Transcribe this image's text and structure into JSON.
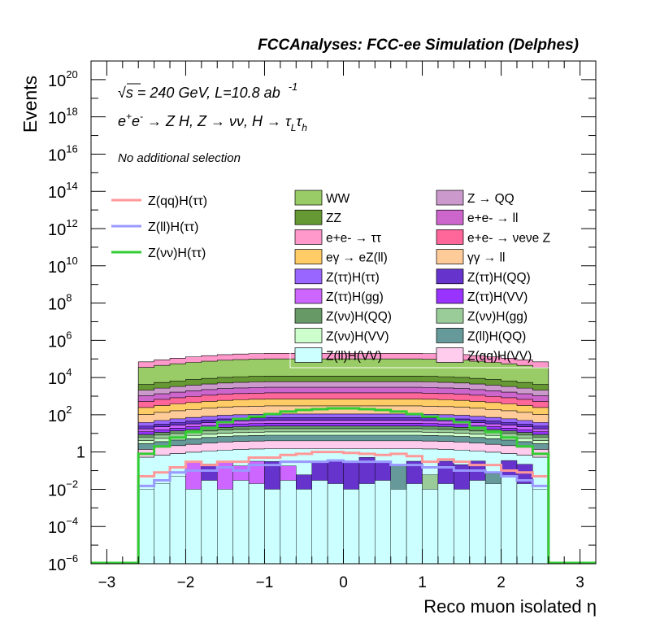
{
  "header": {
    "title": "FCCAnalyses: FCC-ee Simulation (Delphes)"
  },
  "annotations": {
    "energy_prefix": "√s",
    "energy_rest": " = 240 GeV, L=10.8 ab",
    "lumi_exp": "-1",
    "process": {
      "p1": "e",
      "p1_sup": "+",
      "p2": "e",
      "p2_sup": "-",
      "p3": " → Z H, Z  → νν, H  → τ",
      "sub1": "L",
      "p4": "τ",
      "sub2": "h"
    },
    "selection": "No additional selection"
  },
  "chart_data": {
    "type": "histogram",
    "title": "FCCAnalyses: FCC-ee Simulation (Delphes)",
    "xlabel": "Reco muon isolated η",
    "ylabel": "Events",
    "xlim": [
      -3.2,
      3.2
    ],
    "ylim": [
      1e-06,
      1e+21
    ],
    "yscale": "log",
    "x_ticks": [
      "−3",
      "−2",
      "−1",
      "0",
      "1",
      "2",
      "3"
    ],
    "x_tick_values": [
      -3,
      -2,
      -1,
      0,
      1,
      2,
      3
    ],
    "y_ticks": [
      {
        "value": 1e-06,
        "base": "10",
        "exp": "−6"
      },
      {
        "value": 0.0001,
        "base": "10",
        "exp": "−4"
      },
      {
        "value": 0.01,
        "base": "10",
        "exp": "−2"
      },
      {
        "value": 1,
        "base": "1",
        "exp": ""
      },
      {
        "value": 100.0,
        "base": "10",
        "exp": "2"
      },
      {
        "value": 10000.0,
        "base": "10",
        "exp": "4"
      },
      {
        "value": 1000000.0,
        "base": "10",
        "exp": "6"
      },
      {
        "value": 100000000.0,
        "base": "10",
        "exp": "8"
      },
      {
        "value": 10000000000.0,
        "base": "10",
        "exp": "10"
      },
      {
        "value": 1000000000000.0,
        "base": "10",
        "exp": "12"
      },
      {
        "value": 100000000000000.0,
        "base": "10",
        "exp": "14"
      },
      {
        "value": 1e+16,
        "base": "10",
        "exp": "16"
      },
      {
        "value": 1e+18,
        "base": "10",
        "exp": "18"
      },
      {
        "value": 1e+20,
        "base": "10",
        "exp": "20"
      }
    ],
    "bin_range": [
      -2.6,
      2.6
    ],
    "n_bins": 26,
    "stack_layers": [
      {
        "name": "Z(ll)H(VV)",
        "color": "#ccffff",
        "top": 1.5
      },
      {
        "name": "Z(qq)H(VV)",
        "color": "#ffccee",
        "top": 4
      },
      {
        "name": "Z(ll)H(QQ)",
        "color": "#669999",
        "top": 8
      },
      {
        "name": "Z(νν)H(VV)",
        "color": "#ccffcc",
        "top": 12
      },
      {
        "name": "Z(νν)H(gg)",
        "color": "#99cc99",
        "top": 18
      },
      {
        "name": "Z(νν)H(QQ)",
        "color": "#669966",
        "top": 25
      },
      {
        "name": "Z(ττ)H(VV)",
        "color": "#9933ff",
        "top": 35
      },
      {
        "name": "Z(ττ)H(gg)",
        "color": "#cc66ff",
        "top": 50
      },
      {
        "name": "Z(ττ)H(QQ)",
        "color": "#6633cc",
        "top": 70
      },
      {
        "name": "Z(ττ)H(ττ)",
        "color": "#9966ff",
        "top": 110
      },
      {
        "name": "γγ → ll",
        "color": "#ffcc99",
        "top": 300
      },
      {
        "name": "eγ → eZ(ll)",
        "color": "#ffcc66",
        "top": 700
      },
      {
        "name": "e+e- → νeνe Z",
        "color": "#ff6699",
        "top": 1500
      },
      {
        "name": "e+e- → ll",
        "color": "#cc66cc",
        "top": 3000
      },
      {
        "name": "Z → QQ",
        "color": "#cc99cc",
        "top": 6000
      },
      {
        "name": "ZZ",
        "color": "#669933",
        "top": 12000
      },
      {
        "name": "WW",
        "color": "#99cc66",
        "top": 100000
      },
      {
        "name": "e+e- → ττ",
        "color": "#ff99cc",
        "top": 200000
      }
    ],
    "stack_edge_scale": [
      0.35,
      0.45,
      0.55,
      0.65,
      0.75,
      0.85,
      0.92,
      0.97,
      1.0,
      1.0,
      1.0,
      1.0,
      1.0,
      1.0,
      1.0,
      1.0,
      1.0,
      1.0,
      0.97,
      0.92,
      0.85,
      0.75,
      0.65,
      0.55,
      0.45,
      0.35
    ],
    "stack_low_layers": {
      "order": [
        "Z(ll)H(VV)",
        "Z(qq)H(VV)",
        "Z(ττ)H(gg)",
        "Z(ττ)H(QQ)",
        "Z(ll)H(QQ)",
        "Z(νν)H(gg)"
      ],
      "colors": [
        "#ccffff",
        "#ffccee",
        "#cc66ff",
        "#6633cc",
        "#669999",
        "#99cc99"
      ],
      "bins": [
        [
          0.01,
          0,
          0,
          0,
          0,
          0
        ],
        [
          0.02,
          0,
          0,
          0,
          0,
          0
        ],
        [
          0.05,
          0,
          0,
          0,
          0,
          0
        ],
        [
          0.01,
          0,
          0.3,
          0,
          0,
          0
        ],
        [
          0.03,
          0,
          0,
          0.2,
          0,
          0
        ],
        [
          0.01,
          0,
          0.3,
          0,
          0,
          0
        ],
        [
          0.03,
          0,
          0.15,
          0,
          0,
          0
        ],
        [
          0.02,
          0,
          0.3,
          0,
          0,
          0
        ],
        [
          0.01,
          0,
          0,
          0.3,
          0,
          0
        ],
        [
          0.03,
          0,
          0.15,
          0,
          0,
          0
        ],
        [
          0.01,
          0,
          0,
          0.05,
          0,
          0
        ],
        [
          0.03,
          0,
          0,
          0.3,
          0,
          0
        ],
        [
          0.02,
          0,
          0,
          0.3,
          0,
          0
        ],
        [
          0.01,
          0,
          0,
          0.3,
          0,
          0
        ],
        [
          0.02,
          0,
          0,
          0.5,
          0,
          0
        ],
        [
          0.03,
          0,
          0,
          0.3,
          0,
          0
        ],
        [
          0.01,
          0,
          0,
          0,
          0.2,
          0
        ],
        [
          0.02,
          0,
          0,
          0.3,
          0,
          0
        ],
        [
          0.01,
          0,
          0,
          0,
          0,
          0.05
        ],
        [
          0.02,
          0,
          0,
          0.3,
          0,
          0
        ],
        [
          0.01,
          0,
          0,
          0.2,
          0,
          0
        ],
        [
          0.03,
          0,
          0,
          0.3,
          0,
          0
        ],
        [
          0.02,
          0,
          0,
          0,
          0.05,
          0
        ],
        [
          0.05,
          0,
          0,
          0.3,
          0,
          0
        ],
        [
          0.02,
          0,
          0,
          0.2,
          0,
          0
        ],
        [
          0.01,
          0,
          0,
          0,
          0,
          0
        ]
      ]
    },
    "series": [
      {
        "name": "Z(qq)H(ττ)",
        "color": "#ff9999",
        "values": [
          0.05,
          0.08,
          0.15,
          0.3,
          0.2,
          0.3,
          0.3,
          0.5,
          0.5,
          0.7,
          0.8,
          1,
          1,
          0.9,
          0.8,
          0.7,
          0.8,
          0.6,
          0.3,
          0.4,
          0.3,
          0.2,
          0.2,
          0.1,
          0.08,
          0.05
        ]
      },
      {
        "name": "Z(ll)H(ττ)",
        "color": "#9999ff",
        "values": [
          0.015,
          0.03,
          0.08,
          0.1,
          0.1,
          0.15,
          0.1,
          0.2,
          0.2,
          0.3,
          0.3,
          0.3,
          0.35,
          0.3,
          0.3,
          0.3,
          0.2,
          0.2,
          0.15,
          0.15,
          0.1,
          0.1,
          0.08,
          0.05,
          0.03,
          0.015
        ]
      },
      {
        "name": "Z(νν)H(ττ)",
        "color": "#33cc33",
        "values": [
          0.8,
          2,
          6,
          12,
          20,
          40,
          60,
          80,
          110,
          150,
          180,
          200,
          220,
          220,
          200,
          180,
          150,
          110,
          80,
          60,
          40,
          20,
          12,
          6,
          2,
          0.8
        ]
      }
    ],
    "legend_lines": [
      "Z(qq)H(ττ)",
      "Z(ll)H(ττ)",
      "Z(νν)H(ττ)"
    ],
    "legend_stack": {
      "left": [
        "WW",
        "ZZ",
        "e+e- → ττ",
        "eγ → eZ(ll)",
        "Z(ττ)H(ττ)",
        "Z(ττ)H(gg)",
        "Z(νν)H(QQ)",
        "Z(νν)H(VV)",
        "Z(ll)H(VV)"
      ],
      "right": [
        "Z → QQ",
        "e+e- → ll",
        "e+e- → νeνe Z",
        "γγ → ll",
        "Z(ττ)H(QQ)",
        "Z(ττ)H(VV)",
        "Z(νν)H(gg)",
        "Z(ll)H(QQ)",
        "Z(qq)H(VV)"
      ]
    }
  }
}
